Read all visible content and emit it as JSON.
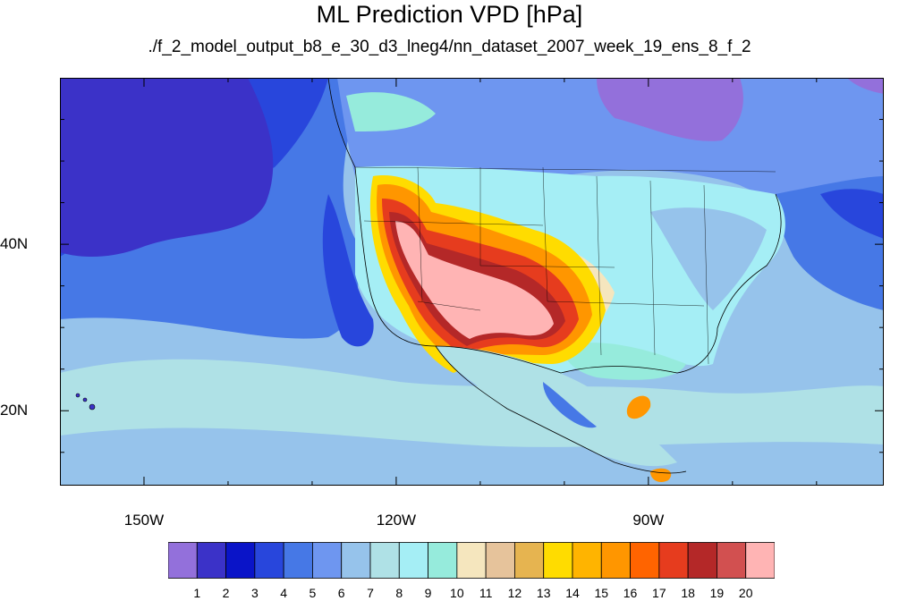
{
  "title": "ML Prediction VPD [hPa]",
  "subtitle": "./f_2_model_output_b8_e_30_d3_lneg4/nn_dataset_2007_week_19_ens_8_f_2",
  "map": {
    "lon_range": [
      -160,
      -62
    ],
    "lat_range": [
      11,
      60
    ],
    "lon_labels": [
      {
        "text": "150W",
        "lon": -150
      },
      {
        "text": "120W",
        "lon": -120
      },
      {
        "text": "90W",
        "lon": -90
      }
    ],
    "lat_labels": [
      {
        "text": "40N",
        "lat": 40
      },
      {
        "text": "20N",
        "lat": 20
      }
    ]
  },
  "colorbar": {
    "labels": [
      "1",
      "2",
      "3",
      "4",
      "5",
      "6",
      "7",
      "8",
      "9",
      "10",
      "11",
      "12",
      "13",
      "14",
      "15",
      "16",
      "17",
      "18",
      "19",
      "20"
    ],
    "colors": [
      "#9370db",
      "#3b32c8",
      "#0a14c8",
      "#2846dc",
      "#4678e6",
      "#6e96f0",
      "#96c3eb",
      "#afe1e6",
      "#a5eef5",
      "#96ebdc",
      "#f5e6be",
      "#e6c39b",
      "#e6b450",
      "#ffdc00",
      "#ffb400",
      "#ff9600",
      "#ff6400",
      "#e63c1e",
      "#b42828",
      "#d25050",
      "#ffb4b4"
    ]
  }
}
